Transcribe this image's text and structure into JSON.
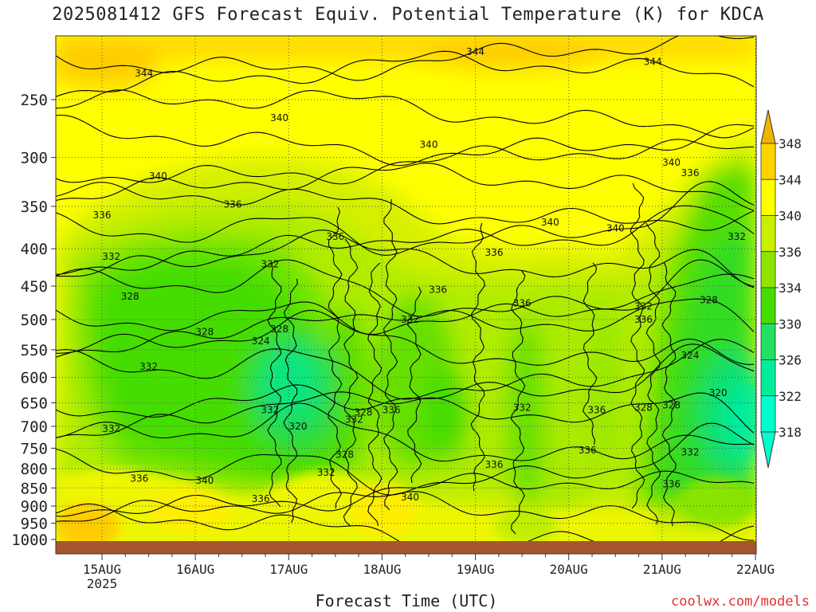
{
  "chart_data": {
    "type": "heatmap",
    "title": "2025081412 GFS Forecast Equiv. Potential Temperature (K) for KDCA",
    "xlabel": "Forecast Time (UTC)",
    "credit": "coolwx.com/models",
    "x_ticks": [
      "15AUG",
      "16AUG",
      "17AUG",
      "18AUG",
      "19AUG",
      "20AUG",
      "21AUG",
      "22AUG"
    ],
    "x_year_label": "2025",
    "y_ticks": [
      250,
      300,
      350,
      400,
      450,
      500,
      550,
      600,
      650,
      700,
      750,
      800,
      850,
      900,
      950,
      1000
    ],
    "ylim_hpa": [
      1000,
      200
    ],
    "grid": true,
    "colorbar": {
      "placement": "right",
      "labels": [
        348,
        344,
        340,
        336,
        334,
        330,
        326,
        322,
        318
      ],
      "colors": [
        "#f0b400",
        "#ffd300",
        "#ffff00",
        "#c8f000",
        "#8ee600",
        "#44dd00",
        "#22e060",
        "#00ee99",
        "#00ffcc"
      ]
    },
    "contour_labels": [
      {
        "text": "344",
        "x": "15.45",
        "y": 230
      },
      {
        "text": "344",
        "x": "19.0",
        "y": 215
      },
      {
        "text": "344",
        "x": "20.9",
        "y": 222
      },
      {
        "text": "340",
        "x": "16.9",
        "y": 265
      },
      {
        "text": "340",
        "x": "15.6",
        "y": 318
      },
      {
        "text": "340",
        "x": "18.5",
        "y": 288
      },
      {
        "text": "340",
        "x": "19.8",
        "y": 368
      },
      {
        "text": "340",
        "x": "20.5",
        "y": 375
      },
      {
        "text": "340",
        "x": "21.1",
        "y": 305
      },
      {
        "text": "336",
        "x": "15.0",
        "y": 360
      },
      {
        "text": "336",
        "x": "16.4",
        "y": 348
      },
      {
        "text": "336",
        "x": "17.5",
        "y": 385
      },
      {
        "text": "336",
        "x": "18.6",
        "y": 455
      },
      {
        "text": "336",
        "x": "19.2",
        "y": 405
      },
      {
        "text": "336",
        "x": "21.3",
        "y": 315
      },
      {
        "text": "336",
        "x": "19.5",
        "y": 475
      },
      {
        "text": "336",
        "x": "20.8",
        "y": 500
      },
      {
        "text": "336",
        "x": "18.1",
        "y": 665
      },
      {
        "text": "336",
        "x": "20.3",
        "y": 665
      },
      {
        "text": "336",
        "x": "20.2",
        "y": 755
      },
      {
        "text": "336",
        "x": "19.2",
        "y": 790
      },
      {
        "text": "336",
        "x": "15.4",
        "y": 825
      },
      {
        "text": "336",
        "x": "16.7",
        "y": 880
      },
      {
        "text": "336",
        "x": "21.1",
        "y": 840
      },
      {
        "text": "340",
        "x": "16.1",
        "y": 830
      },
      {
        "text": "340",
        "x": "18.3",
        "y": 875
      },
      {
        "text": "332",
        "x": "15.1",
        "y": 410
      },
      {
        "text": "332",
        "x": "16.8",
        "y": 420
      },
      {
        "text": "332",
        "x": "18.3",
        "y": 500
      },
      {
        "text": "332",
        "x": "21.8",
        "y": 385
      },
      {
        "text": "332",
        "x": "20.8",
        "y": 480
      },
      {
        "text": "332",
        "x": "15.5",
        "y": 580
      },
      {
        "text": "332",
        "x": "16.8",
        "y": 665
      },
      {
        "text": "332",
        "x": "17.7",
        "y": 685
      },
      {
        "text": "332",
        "x": "19.5",
        "y": 660
      },
      {
        "text": "332",
        "x": "17.4",
        "y": 810
      },
      {
        "text": "332",
        "x": "21.3",
        "y": 760
      },
      {
        "text": "332",
        "x": "15.1",
        "y": 705
      },
      {
        "text": "328",
        "x": "15.3",
        "y": 465
      },
      {
        "text": "328",
        "x": "16.1",
        "y": 520
      },
      {
        "text": "328",
        "x": "16.9",
        "y": 515
      },
      {
        "text": "328",
        "x": "21.5",
        "y": 470
      },
      {
        "text": "328",
        "x": "17.6",
        "y": 765
      },
      {
        "text": "328",
        "x": "17.8",
        "y": 670
      },
      {
        "text": "328",
        "x": "20.8",
        "y": 660
      },
      {
        "text": "328",
        "x": "21.1",
        "y": 655
      },
      {
        "text": "324",
        "x": "16.7",
        "y": 535
      },
      {
        "text": "324",
        "x": "21.3",
        "y": 560
      },
      {
        "text": "320",
        "x": "17.1",
        "y": 700
      },
      {
        "text": "320",
        "x": "21.6",
        "y": 630
      }
    ]
  }
}
